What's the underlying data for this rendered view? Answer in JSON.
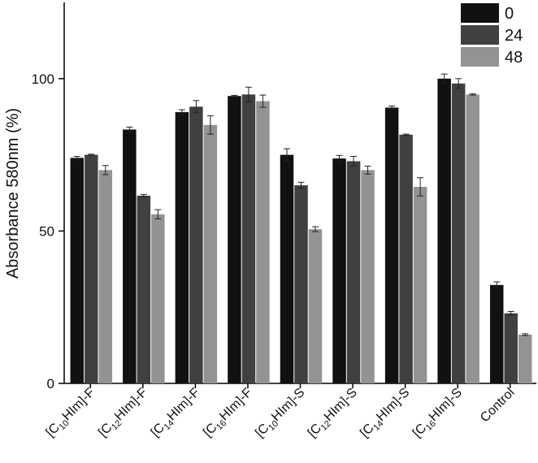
{
  "chart_data": {
    "type": "bar",
    "title": "",
    "xlabel": "",
    "ylabel": "Absorbance 580nm (%)",
    "ylim": [
      0,
      125
    ],
    "yticks": [
      0,
      50,
      100
    ],
    "grid": false,
    "legend_position": "top-right",
    "categories": [
      {
        "pre": "[C",
        "sub": "10",
        "post": "HIm]-F"
      },
      {
        "pre": "[C",
        "sub": "12",
        "post": "HIm]-F"
      },
      {
        "pre": "[C",
        "sub": "14",
        "post": "HIm]-F"
      },
      {
        "pre": "[C",
        "sub": "16",
        "post": "HIm]-F"
      },
      {
        "pre": "[C",
        "sub": "10",
        "post": "HIm]-S"
      },
      {
        "pre": "[C",
        "sub": "12",
        "post": "HIm]-S"
      },
      {
        "pre": "[C",
        "sub": "14",
        "post": "HIm]-S"
      },
      {
        "pre": "[C",
        "sub": "16",
        "post": "HIm]-S"
      },
      {
        "pre": "Control",
        "sub": "",
        "post": ""
      }
    ],
    "series": [
      {
        "name": "0",
        "color": "#111111",
        "values": [
          74,
          83.3,
          89,
          94.3,
          75,
          73.8,
          90.5,
          100,
          32.3
        ],
        "errors": [
          0.5,
          0.8,
          0.8,
          0.2,
          2,
          1,
          0.5,
          1.5,
          1
        ]
      },
      {
        "name": "24",
        "color": "#404040",
        "values": [
          75,
          61.6,
          90.8,
          94.8,
          65,
          72.9,
          81.6,
          98.4,
          23
        ],
        "errors": [
          0.2,
          0.4,
          2,
          2.4,
          1,
          1.6,
          0.2,
          1.6,
          0.6
        ]
      },
      {
        "name": "48",
        "color": "#939393",
        "values": [
          70,
          55.5,
          84.8,
          92.6,
          50.6,
          70,
          64.5,
          94.8,
          16
        ],
        "errors": [
          1.5,
          1.5,
          3,
          2,
          0.8,
          1.3,
          3,
          0.2,
          0.3
        ]
      }
    ]
  }
}
